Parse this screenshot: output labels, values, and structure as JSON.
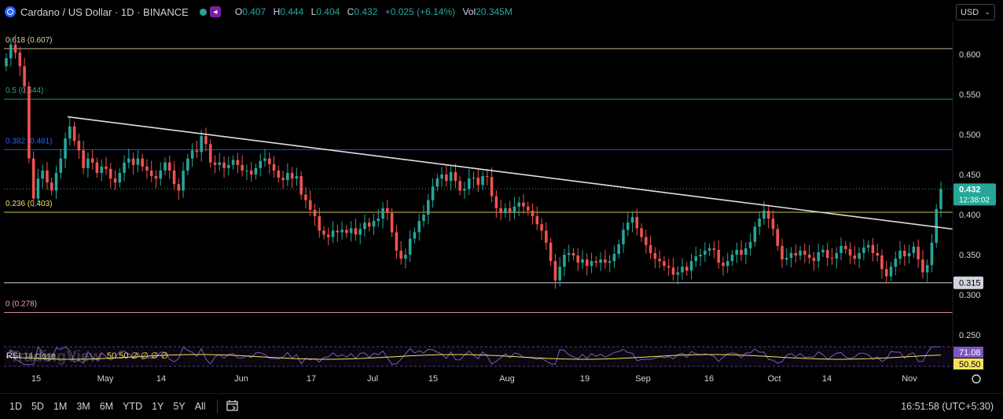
{
  "header": {
    "title": "Cardano / US Dollar · 1D · BINANCE",
    "o_label": "O",
    "o_value": "0.407",
    "h_label": "H",
    "h_value": "0.444",
    "l_label": "L",
    "l_value": "0.404",
    "c_label": "C",
    "c_value": "0.432",
    "change": "+0.025 (+6.14%)",
    "vol_label": "Vol",
    "vol_value": "20.345M"
  },
  "currency": {
    "selected": "USD"
  },
  "price_scale": {
    "ticks": [
      "0.600",
      "0.550",
      "0.500",
      "0.450",
      "0.400",
      "0.350",
      "0.300",
      "0.250"
    ],
    "last_price": "0.432",
    "countdown": "12:38:02",
    "level_label": "0.315"
  },
  "fib_levels": [
    {
      "label": "0.618 (0.607)",
      "price": 0.607,
      "color": "#e6cfa7"
    },
    {
      "label": "0.5 (0.544)",
      "price": 0.544,
      "color": "#26a69a"
    },
    {
      "label": "0.382 (0.481)",
      "price": 0.481,
      "color": "#2962ff"
    },
    {
      "label": "0.236 (0.403)",
      "price": 0.403,
      "color": "#f7e15e"
    },
    {
      "label": "0 (0.278)",
      "price": 0.278,
      "color": "#f5a0b4"
    }
  ],
  "horizontal_level": {
    "price": 0.315,
    "color": "#d1d4dc"
  },
  "trendline": {
    "start": {
      "date": "Apr 21",
      "price": 0.522
    },
    "end": {
      "date": "Nov 8",
      "price": 0.382
    },
    "color": "#e0e0e0"
  },
  "time_axis": [
    "15",
    "May",
    "14",
    "Jun",
    "17",
    "Jul",
    "15",
    "Aug",
    "19",
    "Sep",
    "16",
    "Oct",
    "14",
    "Nov"
  ],
  "rsi": {
    "label": "RSI",
    "params": "14 close",
    "values_text": "50.50 ∅ ∅ ∅ ∅",
    "rsi_value": "71.08",
    "ma_value": "50.50",
    "rsi_color": "#7e57c2",
    "ma_color": "#f7e15e"
  },
  "watermark": "TradingView",
  "ranges": [
    "1D",
    "5D",
    "1M",
    "3M",
    "6M",
    "YTD",
    "1Y",
    "5Y",
    "All"
  ],
  "clock": "16:51:58 (UTC+5:30)",
  "colors": {
    "up": "#26a69a",
    "down": "#ef5350",
    "background": "#000000"
  },
  "chart_data": {
    "type": "candlestick",
    "symbol": "ADAUSD",
    "interval": "1D",
    "ylim": [
      0.23,
      0.63
    ],
    "close_series": [
      0.595,
      0.612,
      0.602,
      0.585,
      0.56,
      0.47,
      0.42,
      0.445,
      0.455,
      0.44,
      0.43,
      0.452,
      0.47,
      0.495,
      0.51,
      0.492,
      0.48,
      0.458,
      0.47,
      0.465,
      0.452,
      0.46,
      0.457,
      0.445,
      0.44,
      0.452,
      0.465,
      0.47,
      0.462,
      0.47,
      0.46,
      0.455,
      0.448,
      0.445,
      0.455,
      0.465,
      0.455,
      0.438,
      0.43,
      0.455,
      0.47,
      0.48,
      0.478,
      0.498,
      0.488,
      0.465,
      0.462,
      0.465,
      0.458,
      0.462,
      0.468,
      0.462,
      0.455,
      0.455,
      0.45,
      0.458,
      0.467,
      0.47,
      0.463,
      0.455,
      0.446,
      0.443,
      0.452,
      0.445,
      0.448,
      0.425,
      0.418,
      0.406,
      0.398,
      0.38,
      0.375,
      0.372,
      0.38,
      0.378,
      0.381,
      0.377,
      0.383,
      0.375,
      0.382,
      0.39,
      0.385,
      0.392,
      0.395,
      0.408,
      0.402,
      0.378,
      0.355,
      0.345,
      0.35,
      0.37,
      0.378,
      0.392,
      0.4,
      0.418,
      0.435,
      0.445,
      0.45,
      0.442,
      0.453,
      0.442,
      0.43,
      0.432,
      0.445,
      0.446,
      0.437,
      0.448,
      0.447,
      0.423,
      0.408,
      0.402,
      0.408,
      0.402,
      0.41,
      0.415,
      0.41,
      0.405,
      0.398,
      0.388,
      0.38,
      0.365,
      0.342,
      0.318,
      0.335,
      0.35,
      0.352,
      0.349,
      0.34,
      0.344,
      0.336,
      0.342,
      0.34,
      0.344,
      0.34,
      0.342,
      0.351,
      0.363,
      0.381,
      0.39,
      0.397,
      0.383,
      0.372,
      0.362,
      0.352,
      0.345,
      0.342,
      0.336,
      0.334,
      0.325,
      0.328,
      0.335,
      0.33,
      0.342,
      0.348,
      0.35,
      0.355,
      0.358,
      0.356,
      0.34,
      0.336,
      0.342,
      0.35,
      0.356,
      0.35,
      0.358,
      0.366,
      0.385,
      0.395,
      0.405,
      0.395,
      0.382,
      0.361,
      0.344,
      0.346,
      0.352,
      0.349,
      0.355,
      0.35,
      0.346,
      0.342,
      0.353,
      0.356,
      0.346,
      0.345,
      0.352,
      0.361,
      0.357,
      0.349,
      0.345,
      0.352,
      0.359,
      0.362,
      0.352,
      0.349,
      0.332,
      0.323,
      0.335,
      0.345,
      0.355,
      0.348,
      0.352,
      0.36,
      0.344,
      0.328,
      0.337,
      0.365,
      0.407,
      0.432
    ],
    "trendline_from": [
      0.522,
      0.382
    ],
    "fib_prices": [
      0.607,
      0.544,
      0.481,
      0.403,
      0.278
    ],
    "ylabel": "USD"
  }
}
